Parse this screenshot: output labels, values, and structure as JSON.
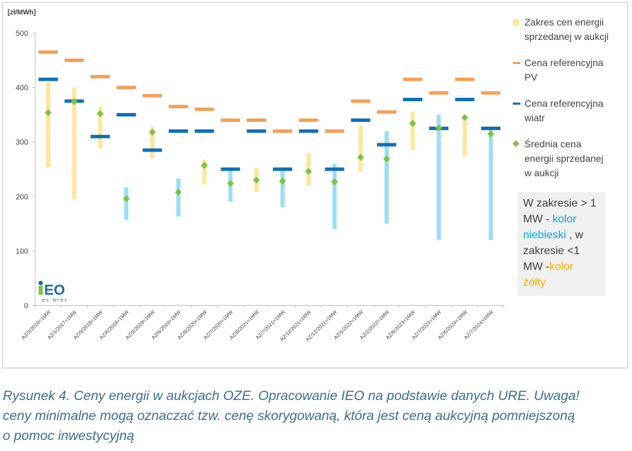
{
  "chart_data": {
    "type": "range-bar",
    "unit_label": "[zł/MWh]",
    "ylim": [
      0,
      500
    ],
    "yticks": [
      0,
      100,
      200,
      300,
      400,
      500
    ],
    "categories": [
      "AZ/3/2016<1MW",
      "AZ/1/2017<1MW",
      "AZ/9/2018<1MW",
      "AZ/6/2018>1MW",
      "AZ/9/2019<1MW",
      "AZ/6/2019>1MW",
      "AZ/8/2020<1MW",
      "AZ/7/2020>1MW",
      "AZ/8/2021<1MW",
      "AZ/7/2021>1MW",
      "AZ/11/2021<1MW",
      "AZ/12/2021>1MW",
      "AZ/1/2022<1MW",
      "AZ/2/2022>1MW",
      "AZ/6/2023<1MW",
      "AZ/7/2023>1MW",
      "AZ/6/2024<1MW",
      "AZ/7/2024>1MW"
    ],
    "price_range": [
      [
        253,
        410
      ],
      [
        195,
        400
      ],
      [
        288,
        365
      ],
      [
        157,
        217
      ],
      [
        270,
        328
      ],
      [
        163,
        233
      ],
      [
        222,
        268
      ],
      [
        190,
        250
      ],
      [
        208,
        253
      ],
      [
        180,
        250
      ],
      [
        220,
        279
      ],
      [
        140,
        260
      ],
      [
        245,
        330
      ],
      [
        150,
        320
      ],
      [
        285,
        355
      ],
      [
        120,
        350
      ],
      [
        273,
        340
      ],
      [
        120,
        325
      ]
    ],
    "range_colors": [
      "yellow",
      "yellow",
      "yellow",
      "blue",
      "yellow",
      "blue",
      "yellow",
      "blue",
      "yellow",
      "blue",
      "yellow",
      "blue",
      "yellow",
      "blue",
      "yellow",
      "blue",
      "yellow",
      "blue"
    ],
    "reference_price_pv": [
      465,
      450,
      420,
      400,
      385,
      365,
      360,
      340,
      340,
      320,
      340,
      320,
      375,
      355,
      415,
      390,
      415,
      390
    ],
    "reference_price_wind": [
      415,
      375,
      310,
      350,
      285,
      320,
      320,
      250,
      320,
      250,
      320,
      250,
      340,
      295,
      378,
      325,
      378,
      325
    ],
    "average_price": [
      354,
      374,
      352,
      196,
      318,
      208,
      257,
      224,
      230,
      228,
      246,
      227,
      272,
      269,
      334,
      326,
      345,
      315
    ],
    "legend": [
      "Zakres cen energii sprzedanej w aukcji",
      "Cena referencyjna PV",
      "Cena referencyjna wiatr",
      "Średnia cena energii sprzedanej w aukcji"
    ],
    "colors": {
      "yellow_range": "#ffe699",
      "blue_range": "#99dff5",
      "pv": "#f4a056",
      "wind": "#0f6fb8",
      "average": "#7fc241",
      "axis": "#bfbfbf",
      "text": "#404040"
    }
  },
  "legend": {
    "range_l1": "Zakres cen energii",
    "range_l2": "sprzedanej w aukcji",
    "pv_l1": "Cena referencyjna",
    "pv_l2": "PV",
    "wind_l1": "Cena referencyjna",
    "wind_l2": "wiatr",
    "avg_l1": "Średnia cena",
    "avg_l2": "energii sprzedanej",
    "avg_l3": "w aukcji"
  },
  "note": {
    "l1": "W zakresie > 1",
    "l2a": "MW - ",
    "l2b": "kolor",
    "l3a": "niebieski",
    "l3b": " , w",
    "l4": "zakresie <1",
    "l5a": "MW -",
    "l5b": "kolor",
    "l6": "żółty"
  },
  "logo": {
    "text": "iEO",
    "sub": "ec brec"
  },
  "caption": {
    "line1": "Rysunek 4. Ceny energii w aukcjach OZE. Opracowanie IEO na podstawie danych URE. Uwaga!",
    "line2": "ceny minimalne mogą oznaczać tzw. cenę skorygowaną, która jest ceną aukcyjną pomniejszoną",
    "line3": "o pomoc inwestycyjną"
  }
}
